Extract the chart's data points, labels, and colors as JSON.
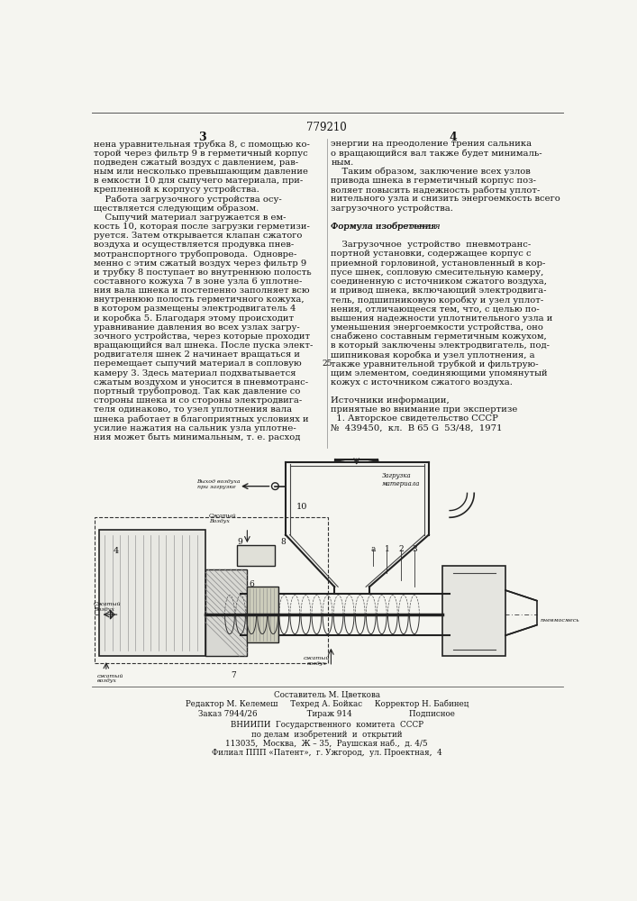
{
  "bg_color": "#f5f5f0",
  "text_color": "#111111",
  "patent_number": "779210",
  "page_left": "3",
  "page_right": "4",
  "col1_lines": [
    "нена уравнительная трубка 8, с помощью ко-",
    "торой через фильтр 9 в герметичный корпус",
    "подведен сжатый воздух с давлением, рав-",
    "ным или несколько превышающим давление",
    "в емкости 10 для сыпучего материала, при-",
    "крепленной к корпусу устройства.",
    "    Работа загрузочного устройства осу-",
    "ществляется следующим образом.",
    "    Сыпучий материал загружается в ем-",
    "кость 10, которая после загрузки герметизи-",
    "руется. Затем открывается клапан сжатого",
    "воздуха и осуществляется продувка пнев-",
    "мотранспортного трубопровода.  Одновре-",
    "менно с этим сжатый воздух через фильтр 9",
    "и трубку 8 поступает во внутреннюю полость",
    "составного кожуха 7 в зоне узла 6 уплотне-",
    "ния вала шнека и постепенно заполняет всю",
    "внутреннюю полость герметичного кожуха,",
    "в котором размещены электродвигатель 4",
    "и коробка 5. Благодаря этому происходит",
    "уравнивание давления во всех узлах загру-",
    "зочного устройства, через которые проходит",
    "вращающийся вал шнека. После пуска элект-",
    "родвигателя шнек 2 начинает вращаться и",
    "перемещает сыпучий материал в сопловую",
    "камеру 3. Здесь материал подхватывается",
    "сжатым воздухом и уносится в пневмотранс-",
    "портный трубопровод. Так как давление со",
    "стороны шнека и со стороны электродвига-",
    "теля одинаково, то узел уплотнения вала",
    "шнека работает в благоприятных условиях и",
    "усилие нажатия на сальник узла уплотне-",
    "ния может быть минимальным, т. е. расход"
  ],
  "col2_lines": [
    "энергии на преодоление трения сальника",
    "о вращающийся вал также будет минималь-",
    "ным.",
    "    Таким образом, заключение всех узлов",
    "привода шнека в герметичный корпус поз-",
    "воляет повысить надежность работы уплот-",
    "нительного узла и снизить энергоемкость всего",
    "загрузочного устройства.",
    "",
    "Формула изобретения",
    "",
    "    Загрузочное  устройство  пневмотранс-",
    "портной установки, содержащее корпус с",
    "приемной горловиной, установленный в кор-",
    "пусе шнек, сопловую смесительную камеру,",
    "соединенную с источником сжатого воздуха,",
    "и привод шнека, включающий электродвига-",
    "тель, подшипниковую коробку и узел уплот-",
    "нения, отличающееся тем, что, с целью по-",
    "вышения надежности уплотнительного узла и",
    "уменьшения энергоемкости устройства, оно",
    "снабжено составным герметичным кожухом,",
    "в который заключены электродвигатель, под-",
    "шипниковая коробка и узел уплотнения, а",
    "также уравнительной трубкой и фильтрую-",
    "щим элементом, соединяющими упомянутый",
    "кожух с источником сжатого воздуха.",
    "",
    "Источники информации,",
    "принятые во внимание при экспертизе",
    "  1. Авторское свидетельство СССР",
    "№  439450,  кл.  B 65 G  53/48,  1971"
  ],
  "footer_lines": [
    "Составитель М. Цветкова",
    "Редактор М. Келемеш     Техред А. Бойкас     Корректор Н. Бабинец",
    "Заказ 7944/26                    Тираж 914                       Подписное",
    "ВНИИПИ  Государственного  комитета  СССР",
    "по делам  изобретений  и  открытий",
    "113035,  Москва,  Ж – 35,  Раушская наб.,  д. 4/5",
    "Филиал ППП «Патент»,  г. Ужгород,  ул. Проектная,  4"
  ],
  "line_num_25": "25"
}
